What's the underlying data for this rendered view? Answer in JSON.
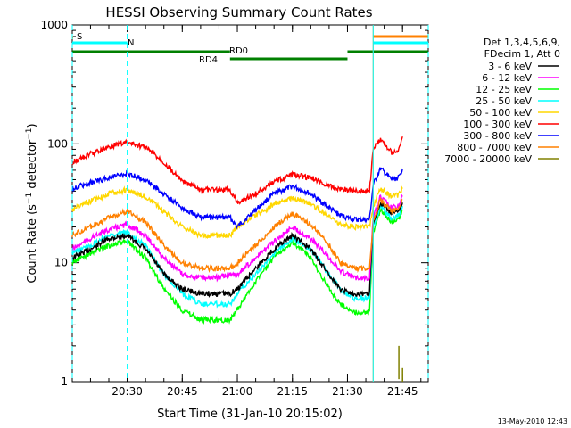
{
  "chart_data": {
    "type": "line",
    "title": "HESSI Observing Summary Count Rates",
    "xlabel": "Start Time (31-Jan-10 20:15:02)",
    "ylabel": "Count Rate (s⁻¹ detector⁻¹)",
    "yscale": "log",
    "ylim": [
      1,
      1000
    ],
    "xlim": [
      "20:15:02",
      "21:52:00"
    ],
    "x_ticks": [
      "20:30",
      "20:45",
      "21:00",
      "21:15",
      "21:30",
      "21:45"
    ],
    "y_ticks": [
      "1",
      "10",
      "100",
      "1000"
    ],
    "legend_title": [
      "Det 1,3,4,5,6,9,",
      "FDecim 1, Att 0"
    ],
    "legend_position": "right",
    "footer": "13-May-2010 12:43",
    "x": [
      "20:15",
      "20:20",
      "20:25",
      "20:30",
      "20:35",
      "20:40",
      "20:45",
      "20:50",
      "20:55",
      "20:58",
      "21:00",
      "21:05",
      "21:10",
      "21:15",
      "21:20",
      "21:25",
      "21:28",
      "21:32",
      "21:36",
      "21:37",
      "21:39",
      "21:42",
      "21:44",
      "21:45"
    ],
    "series": [
      {
        "name": "3 - 6 keV",
        "color": "#000000",
        "values": [
          11,
          13,
          16,
          17,
          13,
          8,
          6,
          5.5,
          5.5,
          5.5,
          6,
          9,
          13,
          17,
          13,
          8,
          6,
          5.5,
          5.5,
          22,
          32,
          26,
          27,
          32
        ]
      },
      {
        "name": "6 - 12 keV",
        "color": "#ff00ff",
        "values": [
          13,
          16,
          19,
          21,
          17,
          11,
          8,
          7.5,
          7.5,
          8,
          8,
          11,
          15,
          20,
          16,
          11,
          8.5,
          7.5,
          7.5,
          24,
          36,
          29,
          30,
          36
        ]
      },
      {
        "name": "12 - 25 keV",
        "color": "#00ff00",
        "values": [
          10,
          12,
          14,
          15,
          11,
          6,
          4,
          3.3,
          3.3,
          3.3,
          4,
          7,
          11,
          15,
          11,
          6,
          4.5,
          3.8,
          3.8,
          18,
          28,
          22,
          23,
          28
        ]
      },
      {
        "name": "25 - 50 keV",
        "color": "#00ffff",
        "values": [
          12,
          14,
          17,
          18,
          14,
          8,
          5.5,
          4.5,
          4.5,
          4.5,
          5.5,
          8,
          12,
          16,
          13,
          8,
          6,
          5,
          5,
          20,
          30,
          24,
          25,
          30
        ]
      },
      {
        "name": "50 - 100 keV",
        "color": "#ffd700",
        "values": [
          28,
          33,
          38,
          41,
          36,
          27,
          20,
          17,
          17,
          17,
          20,
          25,
          31,
          35,
          31,
          25,
          21,
          20,
          20,
          30,
          42,
          36,
          37,
          42
        ]
      },
      {
        "name": "100 - 300 keV",
        "color": "#ff0000",
        "values": [
          70,
          82,
          95,
          103,
          93,
          70,
          48,
          41,
          41,
          41,
          32,
          38,
          48,
          55,
          52,
          44,
          42,
          40,
          40,
          90,
          110,
          85,
          88,
          115
        ]
      },
      {
        "name": "300 - 800 keV",
        "color": "#0000ff",
        "values": [
          42,
          47,
          52,
          56,
          50,
          38,
          29,
          24,
          24,
          24,
          20,
          28,
          38,
          44,
          38,
          29,
          25,
          23,
          23,
          45,
          62,
          50,
          52,
          62
        ]
      },
      {
        "name": "800 - 7000 keV",
        "color": "#ff8000",
        "values": [
          17,
          20,
          24,
          27,
          22,
          14,
          10,
          9,
          9,
          9,
          10,
          14,
          20,
          26,
          21,
          14,
          10,
          9,
          9,
          22,
          34,
          27,
          28,
          34
        ]
      },
      {
        "name": "7000 - 20000 keV",
        "color": "#808000",
        "values": [
          null,
          null,
          null,
          null,
          null,
          null,
          null,
          null,
          null,
          null,
          null,
          null,
          null,
          null,
          null,
          null,
          null,
          null,
          null,
          null,
          null,
          null,
          1.1,
          2
        ]
      }
    ],
    "flag_labels": [
      "S",
      "N",
      "RD0",
      "RD4"
    ]
  }
}
